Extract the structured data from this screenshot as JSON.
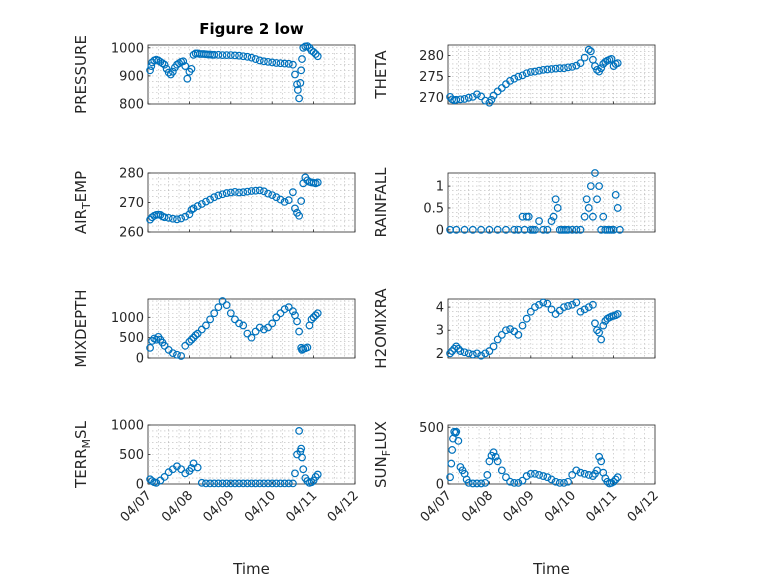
{
  "figure": {
    "title": "Figure 2 low",
    "marker_color": "#0072BD"
  },
  "x_ticks": [
    "04/07",
    "04/08",
    "04/09",
    "04/10",
    "04/11",
    "04/12"
  ],
  "chart_data": [
    {
      "type": "scatter",
      "id": "pressure",
      "title": "Figure 2 low",
      "ylabel": "PRESSURE",
      "xlabel": "",
      "ylim": [
        800,
        1010
      ],
      "yticks": [
        "800",
        "900",
        "1000"
      ],
      "ytick_values": [
        800,
        900,
        1000
      ],
      "xlim": [
        0,
        5
      ],
      "grid": true,
      "x": [
        0.05,
        0.08,
        0.1,
        0.15,
        0.2,
        0.25,
        0.3,
        0.35,
        0.4,
        0.45,
        0.5,
        0.55,
        0.6,
        0.65,
        0.7,
        0.75,
        0.8,
        0.85,
        0.9,
        0.95,
        1.0,
        1.05,
        1.1,
        1.15,
        1.2,
        1.25,
        1.3,
        1.35,
        1.4,
        1.45,
        1.5,
        1.55,
        1.6,
        1.7,
        1.8,
        1.9,
        2.0,
        2.1,
        2.2,
        2.3,
        2.4,
        2.5,
        2.6,
        2.7,
        2.8,
        2.9,
        3.0,
        3.1,
        3.2,
        3.3,
        3.4,
        3.5,
        3.55,
        3.6,
        3.62,
        3.65,
        3.68,
        3.7,
        3.72,
        3.75,
        3.8,
        3.85,
        3.9,
        3.95,
        4.0,
        4.05,
        4.1
      ],
      "y": [
        920,
        935,
        948,
        955,
        958,
        955,
        950,
        945,
        940,
        925,
        912,
        905,
        915,
        930,
        940,
        945,
        950,
        952,
        935,
        890,
        915,
        925,
        975,
        980,
        980,
        978,
        978,
        978,
        977,
        976,
        976,
        975,
        975,
        975,
        974,
        974,
        974,
        973,
        972,
        970,
        968,
        965,
        960,
        955,
        952,
        950,
        948,
        946,
        945,
        944,
        943,
        940,
        905,
        870,
        850,
        820,
        875,
        920,
        960,
        1000,
        1005,
        1006,
        1000,
        990,
        985,
        978,
        970
      ]
    },
    {
      "type": "scatter",
      "id": "theta",
      "ylabel": "THETA",
      "xlabel": "",
      "ylim": [
        268.5,
        282.5
      ],
      "yticks": [
        "270",
        "275",
        "280"
      ],
      "ytick_values": [
        270,
        275,
        280
      ],
      "xlim": [
        0,
        5
      ],
      "grid": true,
      "x": [
        0.05,
        0.1,
        0.15,
        0.2,
        0.3,
        0.4,
        0.5,
        0.6,
        0.7,
        0.8,
        0.9,
        1.0,
        1.05,
        1.1,
        1.2,
        1.3,
        1.4,
        1.5,
        1.6,
        1.7,
        1.8,
        1.9,
        2.0,
        2.1,
        2.2,
        2.3,
        2.4,
        2.5,
        2.6,
        2.7,
        2.8,
        2.9,
        3.0,
        3.1,
        3.2,
        3.3,
        3.4,
        3.45,
        3.5,
        3.55,
        3.6,
        3.65,
        3.7,
        3.75,
        3.8,
        3.85,
        3.9,
        3.95,
        4.0,
        4.05,
        4.1
      ],
      "y": [
        270.2,
        269.6,
        269.4,
        269.5,
        269.6,
        269.7,
        270.0,
        270.2,
        270.8,
        270.3,
        269.3,
        268.8,
        269.5,
        270.5,
        271.5,
        272.3,
        273.2,
        274.0,
        274.5,
        275.0,
        275.3,
        275.8,
        276.1,
        276.2,
        276.4,
        276.6,
        276.7,
        276.8,
        276.9,
        277.0,
        277.0,
        277.2,
        277.3,
        277.6,
        278.2,
        279.5,
        281.4,
        281.0,
        279.0,
        277.5,
        276.6,
        276.2,
        277.0,
        278.0,
        278.5,
        278.8,
        279.0,
        279.2,
        277.5,
        278.0,
        278.2
      ]
    },
    {
      "type": "scatter",
      "id": "air_temp",
      "ylabel": "AIR",
      "ylabel_sub": "T",
      "ylabel_rest": "EMP",
      "xlabel": "",
      "ylim": [
        260,
        280
      ],
      "yticks": [
        "260",
        "270",
        "280"
      ],
      "ytick_values": [
        260,
        270,
        280
      ],
      "xlim": [
        0,
        5
      ],
      "grid": true,
      "x": [
        0.05,
        0.1,
        0.15,
        0.2,
        0.25,
        0.3,
        0.35,
        0.4,
        0.5,
        0.6,
        0.7,
        0.8,
        0.9,
        1.0,
        1.05,
        1.1,
        1.2,
        1.3,
        1.4,
        1.5,
        1.6,
        1.7,
        1.8,
        1.9,
        2.0,
        2.1,
        2.2,
        2.3,
        2.4,
        2.5,
        2.6,
        2.7,
        2.8,
        2.9,
        3.0,
        3.1,
        3.2,
        3.3,
        3.4,
        3.5,
        3.55,
        3.6,
        3.65,
        3.7,
        3.75,
        3.8,
        3.85,
        3.9,
        3.95,
        4.0,
        4.05,
        4.1
      ],
      "y": [
        264.2,
        265.0,
        265.5,
        265.8,
        265.9,
        265.8,
        265.3,
        265.0,
        264.8,
        264.5,
        264.3,
        264.6,
        265.2,
        266.0,
        267.5,
        268.0,
        268.8,
        269.5,
        270.3,
        271.0,
        271.8,
        272.4,
        272.8,
        273.2,
        273.4,
        273.6,
        273.4,
        273.5,
        273.7,
        273.9,
        274.0,
        274.1,
        273.8,
        273.0,
        272.5,
        271.8,
        271.0,
        270.2,
        270.8,
        273.5,
        268.0,
        266.5,
        265.5,
        270.5,
        276.5,
        278.5,
        277.5,
        277.0,
        276.8,
        276.7,
        276.5,
        276.8
      ]
    },
    {
      "type": "scatter",
      "id": "rainfall",
      "ylabel": "RAINFALL",
      "xlabel": "",
      "ylim": [
        -0.05,
        1.3
      ],
      "yticks": [
        "0",
        "0.5",
        "1"
      ],
      "ytick_values": [
        0,
        0.5,
        1
      ],
      "xlim": [
        0,
        5
      ],
      "grid": true,
      "x": [
        0.05,
        0.2,
        0.4,
        0.6,
        0.8,
        1.0,
        1.2,
        1.4,
        1.6,
        1.7,
        1.8,
        1.85,
        1.9,
        1.95,
        2.0,
        2.05,
        2.1,
        2.2,
        2.3,
        2.4,
        2.5,
        2.55,
        2.6,
        2.65,
        2.7,
        2.75,
        2.8,
        2.85,
        2.9,
        3.0,
        3.1,
        3.2,
        3.3,
        3.35,
        3.4,
        3.45,
        3.5,
        3.55,
        3.6,
        3.65,
        3.7,
        3.75,
        3.8,
        3.85,
        3.9,
        3.95,
        4.0,
        4.05,
        4.1,
        4.15
      ],
      "y": [
        0,
        0,
        0,
        0,
        0,
        0,
        0,
        0,
        0,
        0,
        0.3,
        0,
        0.3,
        0.3,
        0,
        0,
        0,
        0.2,
        0,
        0,
        0.2,
        0.3,
        0.7,
        0.5,
        0,
        0,
        0,
        0,
        0,
        0,
        0,
        0,
        0.3,
        0.7,
        0.5,
        1.0,
        0.3,
        1.3,
        0.7,
        1.0,
        0,
        0.3,
        0,
        0,
        0,
        0,
        0,
        0.8,
        0.5,
        0
      ]
    },
    {
      "type": "scatter",
      "id": "mixdepth",
      "ylabel": "MIXDEPTH",
      "xlabel": "",
      "ylim": [
        0,
        1450
      ],
      "yticks": [
        "0",
        "500",
        "1000"
      ],
      "ytick_values": [
        0,
        500,
        1000
      ],
      "xlim": [
        0,
        5
      ],
      "grid": true,
      "x": [
        0.05,
        0.1,
        0.15,
        0.2,
        0.25,
        0.3,
        0.35,
        0.4,
        0.5,
        0.6,
        0.7,
        0.8,
        0.9,
        1.0,
        1.05,
        1.1,
        1.15,
        1.2,
        1.3,
        1.4,
        1.5,
        1.6,
        1.7,
        1.8,
        1.9,
        2.0,
        2.1,
        2.2,
        2.3,
        2.4,
        2.5,
        2.6,
        2.7,
        2.8,
        2.9,
        3.0,
        3.1,
        3.2,
        3.3,
        3.4,
        3.5,
        3.55,
        3.6,
        3.65,
        3.7,
        3.72,
        3.75,
        3.8,
        3.85,
        3.9,
        3.95,
        4.0,
        4.05,
        4.1
      ],
      "y": [
        250,
        420,
        480,
        450,
        520,
        450,
        380,
        300,
        200,
        120,
        80,
        50,
        300,
        400,
        450,
        500,
        560,
        600,
        700,
        800,
        950,
        1100,
        1250,
        1400,
        1300,
        1100,
        950,
        850,
        800,
        600,
        500,
        650,
        750,
        700,
        750,
        850,
        1000,
        1100,
        1200,
        1250,
        1150,
        1050,
        900,
        650,
        250,
        200,
        220,
        240,
        260,
        800,
        950,
        1000,
        1050,
        1100
      ]
    },
    {
      "type": "scatter",
      "id": "h2omixra",
      "ylabel": "H2OMIXRA",
      "xlabel": "",
      "ylim": [
        1.8,
        4.35
      ],
      "yticks": [
        "2",
        "3",
        "4"
      ],
      "ytick_values": [
        2,
        3,
        4
      ],
      "xlim": [
        0,
        5
      ],
      "grid": true,
      "x": [
        0.05,
        0.1,
        0.15,
        0.2,
        0.25,
        0.3,
        0.4,
        0.5,
        0.6,
        0.7,
        0.8,
        0.9,
        1.0,
        1.1,
        1.2,
        1.3,
        1.4,
        1.5,
        1.6,
        1.7,
        1.8,
        1.9,
        2.0,
        2.1,
        2.2,
        2.3,
        2.4,
        2.5,
        2.6,
        2.7,
        2.8,
        2.9,
        3.0,
        3.1,
        3.2,
        3.3,
        3.4,
        3.5,
        3.55,
        3.6,
        3.65,
        3.7,
        3.75,
        3.8,
        3.85,
        3.9,
        3.95,
        4.0,
        4.05,
        4.1
      ],
      "y": [
        2.0,
        2.1,
        2.2,
        2.3,
        2.2,
        2.1,
        2.05,
        2.0,
        1.95,
        2.0,
        1.9,
        2.0,
        2.1,
        2.3,
        2.6,
        2.8,
        3.0,
        3.05,
        2.95,
        2.8,
        3.2,
        3.5,
        3.8,
        4.0,
        4.1,
        4.2,
        4.15,
        3.9,
        3.7,
        3.85,
        4.0,
        4.05,
        4.1,
        4.2,
        3.8,
        3.9,
        4.0,
        4.1,
        3.3,
        3.0,
        2.9,
        2.6,
        3.2,
        3.4,
        3.5,
        3.55,
        3.6,
        3.62,
        3.65,
        3.7
      ]
    },
    {
      "type": "scatter",
      "id": "terr_msl",
      "ylabel": "TERR",
      "ylabel_sub": "M",
      "ylabel_rest": "SL",
      "xlabel": "Time",
      "ylim": [
        0,
        1000
      ],
      "yticks": [
        "0",
        "500",
        "1000"
      ],
      "ytick_values": [
        0,
        500,
        1000
      ],
      "xlim": [
        0,
        5
      ],
      "grid": true,
      "x": [
        0.05,
        0.1,
        0.15,
        0.2,
        0.3,
        0.4,
        0.5,
        0.6,
        0.7,
        0.8,
        0.9,
        1.0,
        1.05,
        1.1,
        1.2,
        1.3,
        1.4,
        1.5,
        1.6,
        1.7,
        1.8,
        1.9,
        2.0,
        2.1,
        2.2,
        2.3,
        2.4,
        2.5,
        2.6,
        2.7,
        2.8,
        2.9,
        3.0,
        3.1,
        3.2,
        3.3,
        3.4,
        3.5,
        3.55,
        3.6,
        3.65,
        3.68,
        3.7,
        3.72,
        3.75,
        3.8,
        3.85,
        3.9,
        3.95,
        4.0,
        4.05,
        4.1
      ],
      "y": [
        80,
        50,
        30,
        20,
        60,
        120,
        200,
        250,
        300,
        250,
        180,
        220,
        270,
        350,
        280,
        20,
        10,
        10,
        10,
        10,
        10,
        10,
        10,
        10,
        10,
        10,
        10,
        10,
        10,
        10,
        10,
        10,
        10,
        10,
        10,
        10,
        10,
        10,
        180,
        500,
        900,
        550,
        600,
        450,
        250,
        100,
        50,
        20,
        30,
        60,
        120,
        160
      ]
    },
    {
      "type": "scatter",
      "id": "sun_flux",
      "ylabel": "SUN",
      "ylabel_sub": "F",
      "ylabel_rest": "LUX",
      "xlabel": "Time",
      "ylim": [
        0,
        520
      ],
      "yticks": [
        "0",
        "500"
      ],
      "ytick_values": [
        0,
        500
      ],
      "xlim": [
        0,
        5
      ],
      "grid": true,
      "x": [
        0.05,
        0.08,
        0.1,
        0.12,
        0.15,
        0.18,
        0.2,
        0.25,
        0.3,
        0.35,
        0.4,
        0.45,
        0.5,
        0.6,
        0.7,
        0.8,
        0.9,
        0.95,
        1.0,
        1.05,
        1.1,
        1.15,
        1.2,
        1.3,
        1.4,
        1.5,
        1.6,
        1.7,
        1.8,
        1.9,
        2.0,
        2.1,
        2.2,
        2.3,
        2.4,
        2.5,
        2.6,
        2.7,
        2.8,
        2.9,
        3.0,
        3.1,
        3.2,
        3.3,
        3.4,
        3.5,
        3.55,
        3.6,
        3.65,
        3.7,
        3.75,
        3.8,
        3.85,
        3.9,
        3.95,
        4.0,
        4.05,
        4.1
      ],
      "y": [
        60,
        180,
        300,
        400,
        460,
        450,
        460,
        380,
        150,
        120,
        90,
        40,
        10,
        5,
        5,
        5,
        10,
        80,
        200,
        250,
        280,
        240,
        200,
        120,
        60,
        20,
        10,
        10,
        30,
        70,
        90,
        90,
        80,
        70,
        60,
        40,
        20,
        10,
        10,
        20,
        80,
        120,
        100,
        90,
        80,
        70,
        90,
        120,
        240,
        200,
        100,
        50,
        20,
        5,
        10,
        20,
        40,
        60
      ]
    }
  ]
}
